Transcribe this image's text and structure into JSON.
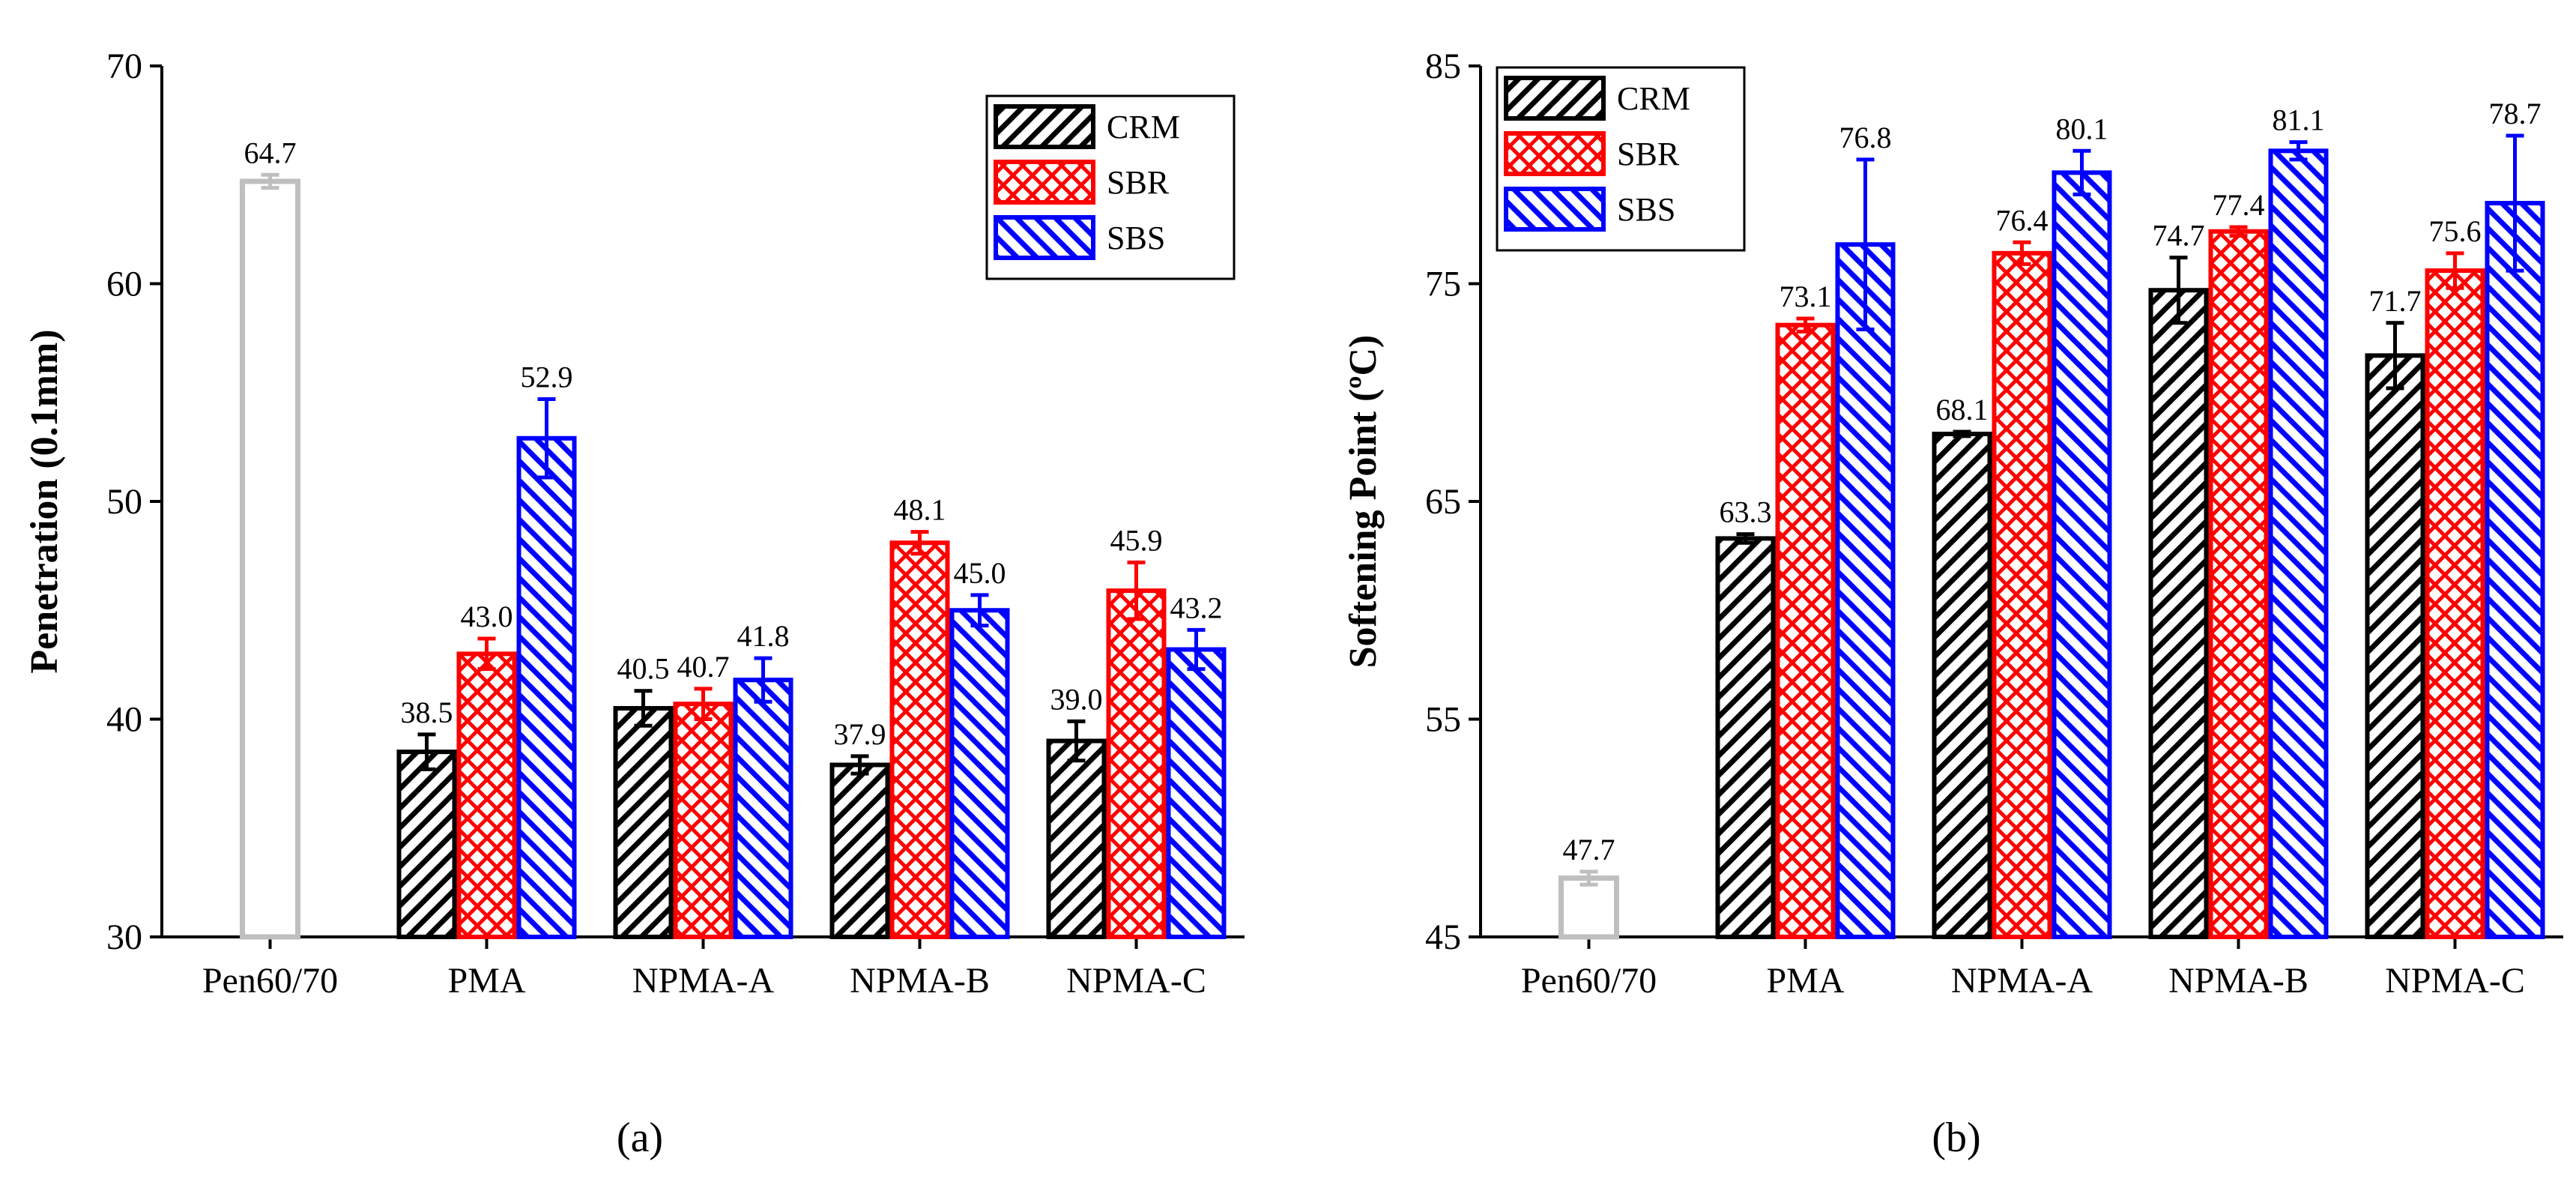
{
  "chart_data": [
    {
      "type": "bar",
      "caption": "(a)",
      "ylabel": "Penetration (0.1mm)",
      "categories": [
        "Pen60/70",
        "PMA",
        "NPMA-A",
        "NPMA-B",
        "NPMA-C"
      ],
      "ylim": [
        30,
        70
      ],
      "yticks": [
        30,
        40,
        50,
        60,
        70
      ],
      "legend": "upper right",
      "baseline": {
        "color": "#bfbfbf",
        "values": [
          64.7,
          null,
          null,
          null,
          null
        ],
        "errors": [
          0.3,
          null,
          null,
          null,
          null
        ],
        "value_labels": [
          "64.7",
          null,
          null,
          null,
          null
        ]
      },
      "series": [
        {
          "name": "CRM",
          "color": "#000000",
          "hatch": "/",
          "values": [
            null,
            38.5,
            40.5,
            37.9,
            39.0
          ],
          "errors": [
            null,
            0.8,
            0.8,
            0.4,
            0.9
          ],
          "value_labels": [
            null,
            "38.5",
            "40.5",
            "37.9",
            "39.0"
          ]
        },
        {
          "name": "SBR",
          "color": "#ff0000",
          "hatch": "x",
          "values": [
            null,
            43.0,
            40.7,
            48.1,
            45.9
          ],
          "errors": [
            null,
            0.7,
            0.7,
            0.5,
            1.3
          ],
          "value_labels": [
            null,
            "43.0",
            "40.7",
            "48.1",
            "45.9"
          ]
        },
        {
          "name": "SBS",
          "color": "#0000ff",
          "hatch": "\\",
          "values": [
            null,
            52.9,
            41.8,
            45.0,
            43.2
          ],
          "errors": [
            null,
            1.8,
            1.0,
            0.7,
            0.9
          ],
          "value_labels": [
            null,
            "52.9",
            "41.8",
            "45.0",
            "43.2"
          ]
        }
      ]
    },
    {
      "type": "bar",
      "caption": "(b)",
      "ylabel": "Softening Point (ºC)",
      "categories": [
        "Pen60/70",
        "PMA",
        "NPMA-A",
        "NPMA-B",
        "NPMA-C"
      ],
      "ylim": [
        45,
        85
      ],
      "yticks": [
        45,
        55,
        65,
        75,
        85
      ],
      "legend": "upper left",
      "baseline": {
        "color": "#bfbfbf",
        "values": [
          47.7,
          null,
          null,
          null,
          null
        ],
        "errors": [
          0.3,
          null,
          null,
          null,
          null
        ],
        "value_labels": [
          "47.7",
          null,
          null,
          null,
          null
        ]
      },
      "series": [
        {
          "name": "CRM",
          "color": "#000000",
          "hatch": "/",
          "values": [
            null,
            63.3,
            68.1,
            74.7,
            71.7
          ],
          "errors": [
            null,
            0.2,
            0.1,
            1.5,
            1.5
          ],
          "value_labels": [
            null,
            "63.3",
            "68.1",
            "74.7",
            "71.7"
          ]
        },
        {
          "name": "SBR",
          "color": "#ff0000",
          "hatch": "x",
          "values": [
            null,
            73.1,
            76.4,
            77.4,
            75.6
          ],
          "errors": [
            null,
            0.3,
            0.5,
            0.2,
            0.8
          ],
          "value_labels": [
            null,
            "73.1",
            "76.4",
            "77.4",
            "75.6"
          ]
        },
        {
          "name": "SBS",
          "color": "#0000ff",
          "hatch": "\\",
          "values": [
            null,
            76.8,
            80.1,
            81.1,
            78.7
          ],
          "errors": [
            null,
            3.9,
            1.0,
            0.4,
            3.1
          ],
          "value_labels": [
            null,
            "76.8",
            "80.1",
            "81.1",
            "78.7"
          ]
        }
      ]
    }
  ]
}
